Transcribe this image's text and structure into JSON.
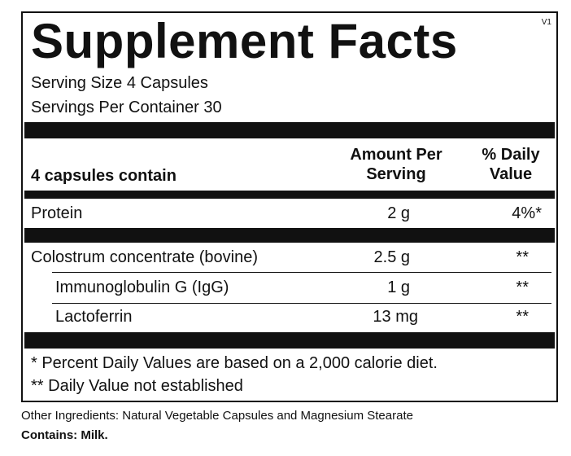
{
  "title": "Supplement Facts",
  "version": "V1",
  "serving_size": "Serving Size 4 Capsules",
  "servings_per_container": "Servings Per Container  30",
  "table_header": {
    "contain_label": "4 capsules contain",
    "amount_line1": "Amount Per",
    "amount_line2": "Serving",
    "dv_line1": "% Daily",
    "dv_line2": "Value"
  },
  "rows": [
    {
      "name": "Protein",
      "amount": "2 g",
      "dv": "4%*"
    },
    {
      "name": "Colostrum concentrate (bovine)",
      "amount": "2.5 g",
      "dv": "**"
    },
    {
      "name": "Immunoglobulin G (IgG)",
      "amount": "1 g",
      "dv": "**"
    },
    {
      "name": "Lactoferrin",
      "amount": "13 mg",
      "dv": "**"
    }
  ],
  "footnotes": [
    "* Percent Daily Values are based on a 2,000 calorie diet.",
    "** Daily Value not established"
  ],
  "other_ingredients": "Other Ingredients: Natural Vegetable Capsules and Magnesium Stearate",
  "contains": "Contains: Milk."
}
